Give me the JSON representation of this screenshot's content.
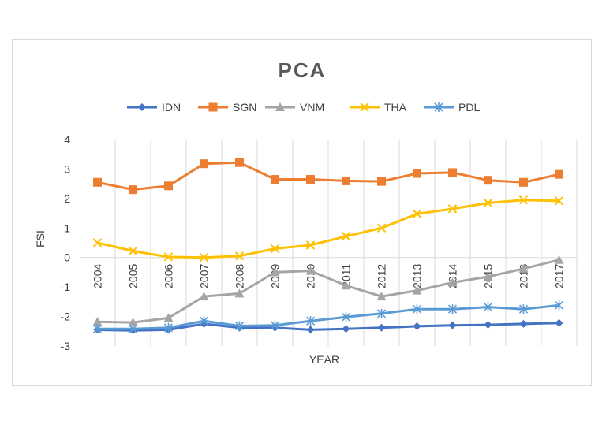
{
  "chart_data": {
    "type": "line",
    "title": "PCA",
    "xlabel": "YEAR",
    "ylabel": "FSI",
    "ylim": [
      -3,
      4
    ],
    "yticks": [
      4,
      3,
      2,
      1,
      0,
      -1,
      -2,
      -3
    ],
    "grid": "vertical",
    "legend_position": "top",
    "categories": [
      "2004",
      "2005",
      "2006",
      "2007",
      "2008",
      "2009",
      "2010",
      "2011",
      "2012",
      "2013",
      "2014",
      "2015",
      "2016",
      "2017"
    ],
    "series": [
      {
        "name": "IDN",
        "color": "#4472c4",
        "marker": "diamond",
        "values": [
          -2.45,
          -2.47,
          -2.45,
          -2.25,
          -2.38,
          -2.38,
          -2.45,
          -2.42,
          -2.38,
          -2.33,
          -2.3,
          -2.28,
          -2.25,
          -2.22
        ]
      },
      {
        "name": "SGN",
        "color": "#ed7d31",
        "marker": "square",
        "values": [
          2.55,
          2.3,
          2.43,
          3.18,
          3.22,
          2.65,
          2.65,
          2.6,
          2.58,
          2.85,
          2.88,
          2.62,
          2.55,
          2.82
        ]
      },
      {
        "name": "VNM",
        "color": "#a5a5a5",
        "marker": "triangle",
        "values": [
          -2.18,
          -2.2,
          -2.05,
          -1.32,
          -1.22,
          -0.5,
          -0.45,
          -0.95,
          -1.32,
          -1.12,
          -0.85,
          -0.65,
          -0.38,
          -0.08
        ]
      },
      {
        "name": "THA",
        "color": "#ffc000",
        "marker": "x",
        "values": [
          0.5,
          0.22,
          0.02,
          0.0,
          0.05,
          0.3,
          0.42,
          0.72,
          1.0,
          1.48,
          1.65,
          1.85,
          1.95,
          1.92
        ]
      },
      {
        "name": "PDL",
        "color": "#5b9bd5",
        "marker": "star",
        "values": [
          -2.42,
          -2.42,
          -2.38,
          -2.15,
          -2.32,
          -2.3,
          -2.15,
          -2.02,
          -1.9,
          -1.75,
          -1.75,
          -1.68,
          -1.75,
          -1.62
        ]
      }
    ]
  }
}
